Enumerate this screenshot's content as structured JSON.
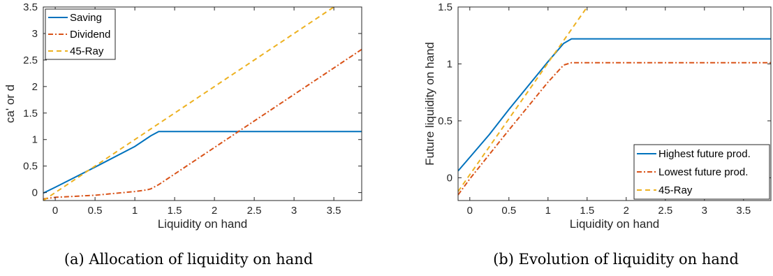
{
  "chart_data": [
    {
      "type": "line",
      "caption": "(a) Allocation of liquidity on hand",
      "xlabel": "Liquidity on hand",
      "ylabel": "ca' or d",
      "xlim": [
        -0.15,
        3.85
      ],
      "ylim": [
        -0.15,
        3.5
      ],
      "xticks": [
        0,
        0.5,
        1,
        1.5,
        2,
        2.5,
        3,
        3.5
      ],
      "xtick_labels": [
        "0",
        "0.5",
        "1",
        "1.5",
        "2",
        "2.5",
        "3",
        "3.5"
      ],
      "yticks": [
        0,
        0.5,
        1,
        1.5,
        2,
        2.5,
        3,
        3.5
      ],
      "ytick_labels": [
        "0",
        "0.5",
        "1",
        "1.5",
        "2",
        "2.5",
        "3",
        "3.5"
      ],
      "grid": false,
      "legend_position": "top-left",
      "series": [
        {
          "name": "Saving",
          "color": "#0072BD",
          "style": "solid",
          "x": [
            -0.15,
            0,
            0.5,
            1,
            1.2,
            1.3,
            1.5,
            2,
            3,
            3.85
          ],
          "y": [
            -0.01,
            0.1,
            0.48,
            0.87,
            1.07,
            1.15,
            1.15,
            1.15,
            1.15,
            1.15
          ]
        },
        {
          "name": "Dividend",
          "color": "#D95319",
          "style": "dashdot",
          "x": [
            -0.15,
            0,
            0.5,
            1,
            1.15,
            1.2,
            1.3,
            2,
            3,
            3.85
          ],
          "y": [
            -0.12,
            -0.09,
            -0.05,
            0.02,
            0.05,
            0.07,
            0.15,
            0.85,
            1.85,
            2.7
          ]
        },
        {
          "name": "45-Ray",
          "color": "#EDB120",
          "style": "dashed",
          "x": [
            -0.15,
            3.5
          ],
          "y": [
            -0.15,
            3.5
          ]
        }
      ]
    },
    {
      "type": "line",
      "caption": "(b) Evolution of liquidity on hand",
      "xlabel": "Liquidity on hand",
      "ylabel": "Future liquidity on hand",
      "xlim": [
        -0.15,
        3.85
      ],
      "ylim": [
        -0.2,
        1.5
      ],
      "xticks": [
        0,
        0.5,
        1,
        1.5,
        2,
        2.5,
        3,
        3.5
      ],
      "xtick_labels": [
        "0",
        "0.5",
        "1",
        "1.5",
        "2",
        "2.5",
        "3",
        "3.5"
      ],
      "yticks": [
        0,
        0.5,
        1,
        1.5
      ],
      "ytick_labels": [
        "0",
        "0.5",
        "1",
        "1.5"
      ],
      "grid": false,
      "legend_position": "bottom-right",
      "series": [
        {
          "name": "Highest future prod.",
          "color": "#0072BD",
          "style": "solid",
          "x": [
            -0.15,
            0,
            0.25,
            0.5,
            1,
            1.2,
            1.3,
            1.5,
            2,
            3,
            3.85
          ],
          "y": [
            0.06,
            0.18,
            0.38,
            0.6,
            1.02,
            1.18,
            1.22,
            1.22,
            1.22,
            1.22,
            1.22
          ]
        },
        {
          "name": "Lowest future prod.",
          "color": "#D95319",
          "style": "dashdot",
          "x": [
            -0.15,
            0,
            0.5,
            1,
            1.2,
            1.3,
            1.5,
            2,
            3,
            3.85
          ],
          "y": [
            -0.15,
            -0.01,
            0.42,
            0.84,
            0.99,
            1.01,
            1.01,
            1.01,
            1.01,
            1.01
          ]
        },
        {
          "name": "45-Ray",
          "color": "#EDB120",
          "style": "dashed",
          "x": [
            -0.15,
            1.5
          ],
          "y": [
            -0.12,
            1.5
          ]
        }
      ]
    }
  ]
}
